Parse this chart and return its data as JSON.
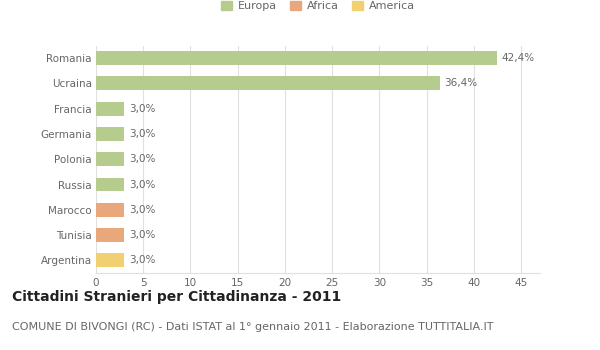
{
  "categories": [
    "Romania",
    "Ucraina",
    "Francia",
    "Germania",
    "Polonia",
    "Russia",
    "Marocco",
    "Tunisia",
    "Argentina"
  ],
  "values": [
    42.4,
    36.4,
    3.0,
    3.0,
    3.0,
    3.0,
    3.0,
    3.0,
    3.0
  ],
  "labels": [
    "42,4%",
    "36,4%",
    "3,0%",
    "3,0%",
    "3,0%",
    "3,0%",
    "3,0%",
    "3,0%",
    "3,0%"
  ],
  "colors": [
    "#b5cc8e",
    "#b5cc8e",
    "#b5cc8e",
    "#b5cc8e",
    "#b5cc8e",
    "#b5cc8e",
    "#e8a87c",
    "#e8a87c",
    "#f0d070"
  ],
  "legend": [
    {
      "label": "Europa",
      "color": "#b5cc8e"
    },
    {
      "label": "Africa",
      "color": "#e8a87c"
    },
    {
      "label": "America",
      "color": "#f0d070"
    }
  ],
  "xlim": [
    0,
    47
  ],
  "xticks": [
    0,
    5,
    10,
    15,
    20,
    25,
    30,
    35,
    40,
    45
  ],
  "title": "Cittadini Stranieri per Cittadinanza - 2011",
  "subtitle": "COMUNE DI BIVONGI (RC) - Dati ISTAT al 1° gennaio 2011 - Elaborazione TUTTITALIA.IT",
  "background_color": "#ffffff",
  "grid_color": "#e0e0e0",
  "bar_height": 0.55,
  "title_fontsize": 10,
  "subtitle_fontsize": 8,
  "label_fontsize": 7.5,
  "tick_fontsize": 7.5
}
